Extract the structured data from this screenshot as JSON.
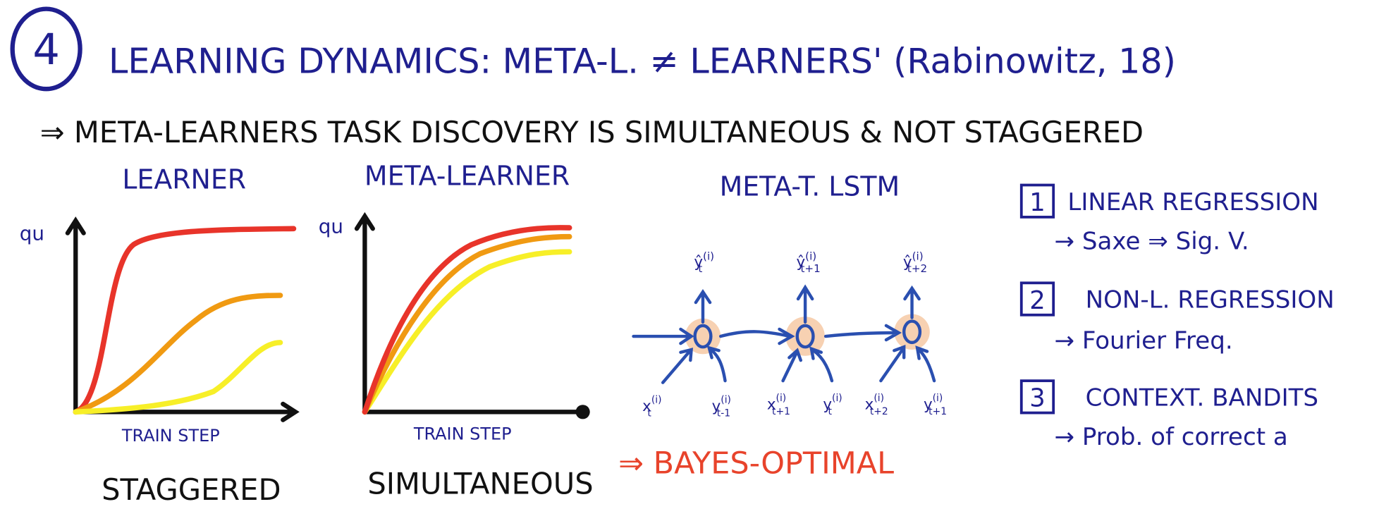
{
  "header": {
    "number": "4",
    "title": "LEARNING DYNAMICS: META-L. ≠ LEARNERS' (Rabinowitz, 18)",
    "subtitle": "⇒ META-LEARNERS TASK DISCOVERY IS SIMULTANEOUS & NOT STAGGERED"
  },
  "plots": [
    {
      "title": "LEARNER",
      "y_label": "qu",
      "x_label": "TRAIN STEP",
      "caption": "STAGGERED"
    },
    {
      "title": "META-LEARNER",
      "y_label": "qu",
      "x_label": "TRAIN STEP",
      "caption": "SIMULTANEOUS"
    }
  ],
  "lstm": {
    "title": "META-T. LSTM",
    "outputs": [
      {
        "base": "ŷ",
        "sub": "t",
        "sup": "(i)"
      },
      {
        "base": "ŷ",
        "sub": "t+1",
        "sup": "(i)"
      },
      {
        "base": "ŷ",
        "sub": "t+2",
        "sup": "(i)"
      }
    ],
    "inputs": [
      {
        "base": "x",
        "sub": "t",
        "sup": "(i)"
      },
      {
        "base": "y",
        "sub": "t-1",
        "sup": "(i)"
      },
      {
        "base": "x",
        "sub": "t+1",
        "sup": "(i)"
      },
      {
        "base": "y",
        "sub": "t",
        "sup": "(i)"
      },
      {
        "base": "x",
        "sub": "t+2",
        "sup": "(i)"
      },
      {
        "base": "y",
        "sub": "t+1",
        "sup": "(i)"
      }
    ],
    "conclusion": "⇒ BAYES-OPTIMAL"
  },
  "list": [
    {
      "number": "1",
      "title": "LINEAR REGRESSION",
      "note": "→ Saxe ⇒ Sig. V."
    },
    {
      "number": "2",
      "title": "NON-L. REGRESSION",
      "note": "→ Fourier Freq."
    },
    {
      "number": "3",
      "title": "CONTEXT. BANDITS",
      "note": "→ Prob. of correct a"
    }
  ]
}
